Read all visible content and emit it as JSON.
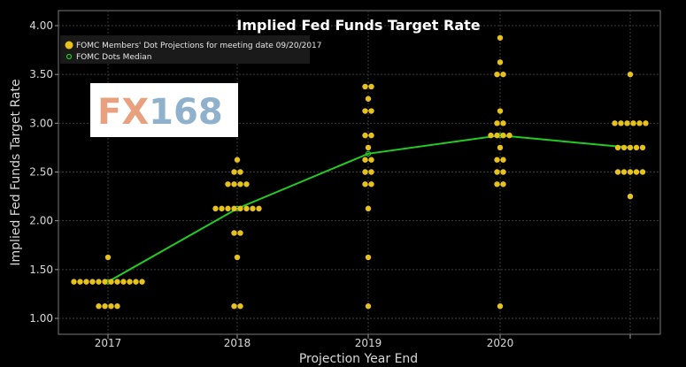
{
  "chart_data": {
    "type": "scatter",
    "title": "Implied Fed Funds Target Rate",
    "xlabel": "Projection Year End",
    "ylabel": "Implied Fed Funds Target Rate",
    "categories": [
      "2017",
      "2018",
      "2019",
      "2020",
      ""
    ],
    "ylim": [
      1.0,
      4.0
    ],
    "yticks": [
      "1.00",
      "1.50",
      "2.00",
      "2.50",
      "3.00",
      "3.50",
      "4.00"
    ],
    "grid": true,
    "legend_position": "top-left",
    "series": [
      {
        "name": "FOMC Members' Dot Projections for meeting date 09/20/2017",
        "color": "#e8c21c",
        "points": [
          {
            "x": 0,
            "y": 1.625,
            "count": 1
          },
          {
            "x": 0,
            "y": 1.375,
            "count": 12
          },
          {
            "x": 0,
            "y": 1.125,
            "count": 4
          },
          {
            "x": 1,
            "y": 2.625,
            "count": 1
          },
          {
            "x": 1,
            "y": 2.5,
            "count": 2
          },
          {
            "x": 1,
            "y": 2.375,
            "count": 4
          },
          {
            "x": 1,
            "y": 2.125,
            "count": 8
          },
          {
            "x": 1,
            "y": 1.875,
            "count": 2
          },
          {
            "x": 1,
            "y": 1.625,
            "count": 1
          },
          {
            "x": 1,
            "y": 1.125,
            "count": 2
          },
          {
            "x": 2,
            "y": 3.375,
            "count": 2
          },
          {
            "x": 2,
            "y": 3.25,
            "count": 1
          },
          {
            "x": 2,
            "y": 3.125,
            "count": 2
          },
          {
            "x": 2,
            "y": 2.875,
            "count": 2
          },
          {
            "x": 2,
            "y": 2.75,
            "count": 1
          },
          {
            "x": 2,
            "y": 2.625,
            "count": 2
          },
          {
            "x": 2,
            "y": 2.5,
            "count": 2
          },
          {
            "x": 2,
            "y": 2.375,
            "count": 2
          },
          {
            "x": 2,
            "y": 2.125,
            "count": 1
          },
          {
            "x": 2,
            "y": 1.625,
            "count": 1
          },
          {
            "x": 2,
            "y": 1.125,
            "count": 1
          },
          {
            "x": 3,
            "y": 3.875,
            "count": 1
          },
          {
            "x": 3,
            "y": 3.625,
            "count": 1
          },
          {
            "x": 3,
            "y": 3.5,
            "count": 2
          },
          {
            "x": 3,
            "y": 3.125,
            "count": 1
          },
          {
            "x": 3,
            "y": 3.0,
            "count": 2
          },
          {
            "x": 3,
            "y": 2.875,
            "count": 4
          },
          {
            "x": 3,
            "y": 2.75,
            "count": 1
          },
          {
            "x": 3,
            "y": 2.625,
            "count": 2
          },
          {
            "x": 3,
            "y": 2.5,
            "count": 2
          },
          {
            "x": 3,
            "y": 2.375,
            "count": 2
          },
          {
            "x": 3,
            "y": 1.125,
            "count": 1
          },
          {
            "x": 4,
            "y": 3.5,
            "count": 1
          },
          {
            "x": 4,
            "y": 3.0,
            "count": 6
          },
          {
            "x": 4,
            "y": 2.75,
            "count": 5
          },
          {
            "x": 4,
            "y": 2.5,
            "count": 5
          },
          {
            "x": 4,
            "y": 2.25,
            "count": 1
          }
        ]
      },
      {
        "name": "FOMC Dots Median",
        "color": "#22cc22",
        "line": [
          {
            "x": 0,
            "y": 1.375
          },
          {
            "x": 1,
            "y": 2.125
          },
          {
            "x": 2,
            "y": 2.6875
          },
          {
            "x": 3,
            "y": 2.875
          },
          {
            "x": 4,
            "y": 2.75
          }
        ]
      }
    ]
  },
  "logo": {
    "text_a": "FX",
    "text_b": "168",
    "color_a": "#e8a07f",
    "color_b": "#8fb1cc"
  }
}
